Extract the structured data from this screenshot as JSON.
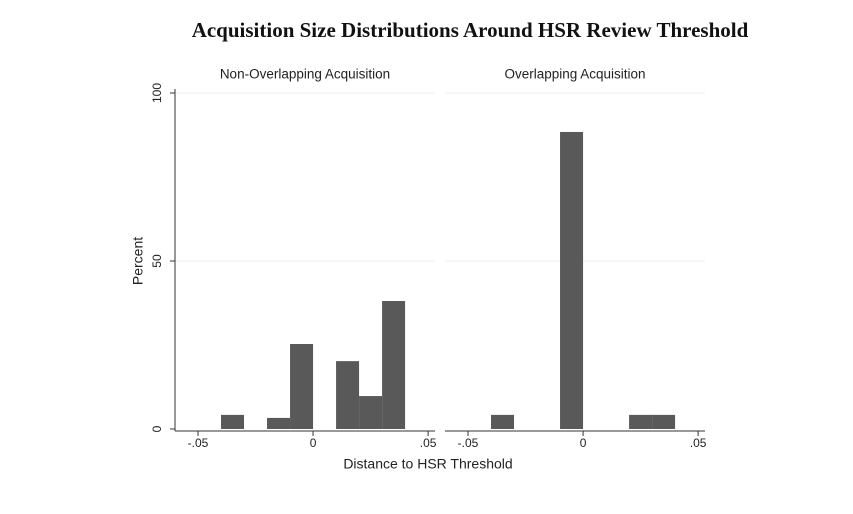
{
  "figure": {
    "title": "Acquisition Size Distributions Around HSR Review Threshold",
    "x_label": "Distance to HSR Threshold",
    "y_label": "Percent"
  },
  "chart_data": [
    {
      "type": "histogram",
      "title": "Non-Overlapping Acquisition",
      "bins": [
        -0.04,
        -0.03,
        -0.02,
        -0.01,
        0,
        0.01,
        0.02,
        0.03,
        0.04
      ],
      "values": [
        4.2,
        0,
        3.3,
        25.3,
        0,
        20.2,
        9.8,
        38.1
      ],
      "color": "#595959",
      "xlim": [
        -0.06,
        0.053
      ],
      "xticks": [
        {
          "value": -0.05,
          "label": "-.05"
        },
        0,
        {
          "value": 0.05,
          "label": ".05"
        }
      ],
      "ylim": [
        0,
        100
      ],
      "yticks": [
        0,
        50,
        100
      ],
      "grid": true,
      "show_y_axis": true
    },
    {
      "type": "histogram",
      "title": "Overlapping Acquisition",
      "bins": [
        -0.04,
        -0.03,
        -0.02,
        -0.01,
        0,
        0.01,
        0.02,
        0.03,
        0.04
      ],
      "values": [
        4.2,
        0,
        0,
        88.4,
        0,
        0,
        4.2,
        4.2
      ],
      "color": "#595959",
      "xlim": [
        -0.06,
        0.053
      ],
      "xticks": [
        {
          "value": -0.05,
          "label": "-.05"
        },
        0,
        {
          "value": 0.05,
          "label": ".05"
        }
      ],
      "ylim": [
        0,
        100
      ],
      "yticks": [
        0,
        50,
        100
      ],
      "grid": true,
      "show_y_axis": false
    }
  ]
}
